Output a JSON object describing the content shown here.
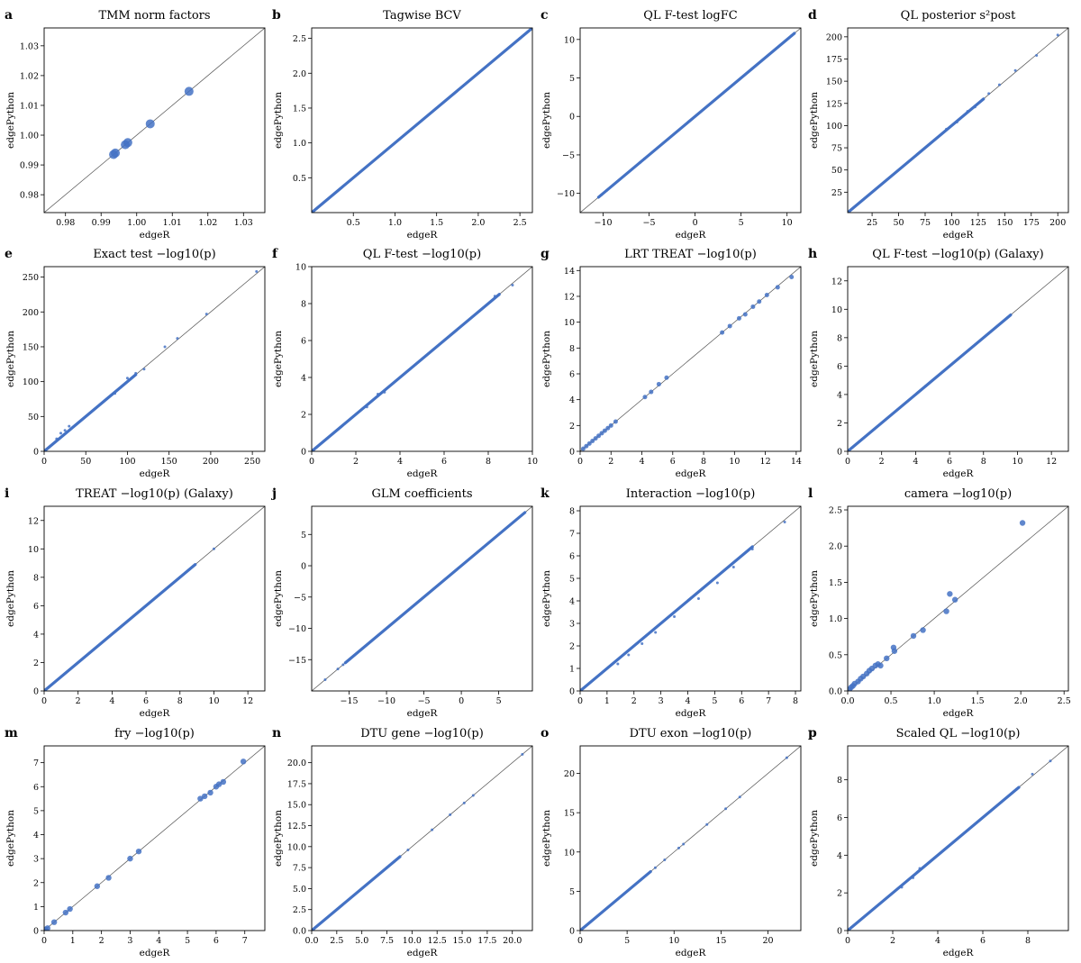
{
  "figure": {
    "x_axis_label": "edgeR",
    "y_axis_label": "edgePython",
    "point_color": "#4472c4",
    "diagonal_color": "#555555"
  },
  "chart_data": [
    {
      "type": "scatter",
      "panel": "a",
      "title": "TMM norm factors",
      "xlim": [
        0.974,
        1.036
      ],
      "ylim": [
        0.974,
        1.036
      ],
      "xticks": [
        "0.98",
        "0.99",
        "1.00",
        "1.01",
        "1.02",
        "1.03"
      ],
      "xtick_values": [
        0.98,
        0.99,
        1.0,
        1.01,
        1.02,
        1.03
      ],
      "yticks": [
        "0.98",
        "0.99",
        "1.00",
        "1.01",
        "1.02",
        "1.03"
      ],
      "ytick_values": [
        0.98,
        0.99,
        1.0,
        1.01,
        1.02,
        1.03
      ],
      "x": [
        0.9935,
        0.994,
        0.9968,
        0.9975,
        1.0038,
        1.0147
      ],
      "y": [
        0.9935,
        0.994,
        0.9968,
        0.9975,
        1.0038,
        1.0147
      ],
      "point_size": 5
    },
    {
      "type": "scatter",
      "panel": "b",
      "title": "Tagwise BCV",
      "xlim": [
        0.0,
        2.65
      ],
      "ylim": [
        0.0,
        2.65
      ],
      "xticks": [
        "0.5",
        "1.0",
        "1.5",
        "2.0",
        "2.5"
      ],
      "xtick_values": [
        0.5,
        1.0,
        1.5,
        2.0,
        2.5
      ],
      "yticks": [
        "0.5",
        "1.0",
        "1.5",
        "2.0",
        "2.5"
      ],
      "ytick_values": [
        0.5,
        1.0,
        1.5,
        2.0,
        2.5
      ],
      "x": [
        0.0,
        2.5
      ],
      "y": [
        0.0,
        2.5
      ],
      "line": true,
      "point_size": 1.5
    },
    {
      "type": "scatter",
      "panel": "c",
      "title": "QL F-test logFC",
      "xlim": [
        -12.5,
        11.5
      ],
      "ylim": [
        -12.5,
        11.5
      ],
      "xticks": [
        "−10",
        "−5",
        "0",
        "5",
        "10"
      ],
      "xtick_values": [
        -10,
        -5,
        0,
        5,
        10
      ],
      "yticks": [
        "−10",
        "−5",
        "0",
        "5",
        "10"
      ],
      "ytick_values": [
        -10,
        -5,
        0,
        5,
        10
      ],
      "x": [
        -10.2,
        -9.6,
        -6.0,
        -5.5,
        5.8,
        6.2,
        10.5
      ],
      "y": [
        -10.2,
        -9.6,
        -6.0,
        -5.5,
        5.8,
        6.2,
        10.5
      ],
      "line": true,
      "linerange": [
        -10.5,
        10.8
      ],
      "point_size": 1.5
    },
    {
      "type": "scatter",
      "panel": "d",
      "title": "QL posterior s²post",
      "xlim": [
        2,
        210
      ],
      "ylim": [
        2,
        210
      ],
      "xticks": [
        "25",
        "50",
        "75",
        "100",
        "125",
        "150",
        "175",
        "200"
      ],
      "xtick_values": [
        25,
        50,
        75,
        100,
        125,
        150,
        175,
        200
      ],
      "yticks": [
        "25",
        "50",
        "75",
        "100",
        "125",
        "150",
        "175",
        "200"
      ],
      "ytick_values": [
        25,
        50,
        75,
        100,
        125,
        150,
        175,
        200
      ],
      "x": [
        95,
        105,
        115,
        122,
        135,
        145,
        160,
        180,
        200
      ],
      "y": [
        96,
        104,
        116,
        121,
        136,
        146,
        162,
        179,
        202
      ],
      "line": true,
      "linerange": [
        2,
        130
      ],
      "point_size": 1.5
    },
    {
      "type": "scatter",
      "panel": "e",
      "title": "Exact test −log10(p)",
      "xlim": [
        0,
        265
      ],
      "ylim": [
        0,
        265
      ],
      "xticks": [
        "0",
        "50",
        "100",
        "150",
        "200",
        "250"
      ],
      "xtick_values": [
        0,
        50,
        100,
        150,
        200,
        250
      ],
      "yticks": [
        "0",
        "50",
        "100",
        "150",
        "200",
        "250"
      ],
      "ytick_values": [
        0,
        50,
        100,
        150,
        200,
        250
      ],
      "x": [
        15,
        20,
        25,
        30,
        85,
        100,
        110,
        120,
        145,
        160,
        195,
        255
      ],
      "y": [
        18,
        26,
        30,
        36,
        83,
        105,
        112,
        118,
        150,
        162,
        197,
        258
      ],
      "line": true,
      "linerange": [
        0,
        110
      ],
      "point_size": 1.5
    },
    {
      "type": "scatter",
      "panel": "f",
      "title": "QL F-test −log10(p)",
      "xlim": [
        0,
        10
      ],
      "ylim": [
        0,
        10
      ],
      "xticks": [
        "0",
        "2",
        "4",
        "6",
        "8",
        "10"
      ],
      "xtick_values": [
        0,
        2,
        4,
        6,
        8,
        10
      ],
      "yticks": [
        "0",
        "2",
        "4",
        "6",
        "8",
        "10"
      ],
      "ytick_values": [
        0,
        2,
        4,
        6,
        8,
        10
      ],
      "x": [
        2.5,
        3.0,
        3.3,
        7.6,
        8.3,
        9.1
      ],
      "y": [
        2.4,
        3.1,
        3.2,
        7.6,
        8.4,
        9.0
      ],
      "line": true,
      "linerange": [
        0,
        8.5
      ],
      "point_size": 1.5
    },
    {
      "type": "scatter",
      "panel": "g",
      "title": "LRT TREAT −log10(p)",
      "xlim": [
        0,
        14.3
      ],
      "ylim": [
        0,
        14.3
      ],
      "xticks": [
        "0",
        "2",
        "4",
        "6",
        "8",
        "10",
        "12",
        "14"
      ],
      "xtick_values": [
        0,
        2,
        4,
        6,
        8,
        10,
        12,
        14
      ],
      "yticks": [
        "0",
        "2",
        "4",
        "6",
        "8",
        "10",
        "12",
        "14"
      ],
      "ytick_values": [
        0,
        2,
        4,
        6,
        8,
        10,
        12,
        14
      ],
      "x": [
        0.2,
        0.4,
        0.6,
        0.8,
        1.0,
        1.2,
        1.4,
        1.6,
        1.8,
        2.0,
        2.3,
        4.2,
        4.6,
        5.1,
        5.6,
        9.2,
        9.7,
        10.3,
        10.7,
        11.2,
        11.6,
        12.1,
        12.8,
        13.7
      ],
      "y": [
        0.2,
        0.4,
        0.6,
        0.8,
        1.0,
        1.2,
        1.4,
        1.6,
        1.8,
        2.0,
        2.3,
        4.2,
        4.6,
        5.2,
        5.7,
        9.2,
        9.7,
        10.3,
        10.6,
        11.2,
        11.6,
        12.1,
        12.7,
        13.5
      ],
      "point_size": 2.5
    },
    {
      "type": "scatter",
      "panel": "h",
      "title": "QL F-test −log10(p) (Galaxy)",
      "xlim": [
        0,
        13
      ],
      "ylim": [
        0,
        13
      ],
      "xticks": [
        "0",
        "2",
        "4",
        "6",
        "8",
        "10",
        "12"
      ],
      "xtick_values": [
        0,
        2,
        4,
        6,
        8,
        10,
        12
      ],
      "yticks": [
        "0",
        "2",
        "4",
        "6",
        "8",
        "10",
        "12"
      ],
      "ytick_values": [
        0,
        2,
        4,
        6,
        8,
        10,
        12
      ],
      "x": [
        4.6,
        8.3,
        9.4
      ],
      "y": [
        4.6,
        8.3,
        9.4
      ],
      "line": true,
      "linerange": [
        0,
        9.6
      ],
      "point_size": 1.5
    },
    {
      "type": "scatter",
      "panel": "i",
      "title": "TREAT −log10(p) (Galaxy)",
      "xlim": [
        0,
        13
      ],
      "ylim": [
        0,
        13
      ],
      "xticks": [
        "0",
        "2",
        "4",
        "6",
        "8",
        "10",
        "12"
      ],
      "xtick_values": [
        0,
        2,
        4,
        6,
        8,
        10,
        12
      ],
      "yticks": [
        "0",
        "2",
        "4",
        "6",
        "8",
        "10",
        "12"
      ],
      "ytick_values": [
        0,
        2,
        4,
        6,
        8,
        10,
        12
      ],
      "x": [
        6.6,
        8.0,
        8.8,
        10.0
      ],
      "y": [
        6.6,
        8.0,
        8.8,
        10.0
      ],
      "line": true,
      "linerange": [
        0,
        8.9
      ],
      "point_size": 1.5
    },
    {
      "type": "scatter",
      "panel": "j",
      "title": "GLM coefficients",
      "xlim": [
        -20,
        9.5
      ],
      "ylim": [
        -20,
        9.5
      ],
      "xticks": [
        "−15",
        "−10",
        "−5",
        "0",
        "5"
      ],
      "xtick_values": [
        -15,
        -10,
        -5,
        0,
        5
      ],
      "yticks": [
        "−15",
        "−10",
        "−5",
        "0",
        "5"
      ],
      "ytick_values": [
        -15,
        -10,
        -5,
        0,
        5
      ],
      "x": [
        -18.2,
        -16.5,
        -15.8
      ],
      "y": [
        -18.2,
        -16.5,
        -15.8
      ],
      "line": true,
      "linerange": [
        -15.5,
        8.5
      ],
      "point_size": 1.5
    },
    {
      "type": "scatter",
      "panel": "k",
      "title": "Interaction −log10(p)",
      "xlim": [
        0,
        8.2
      ],
      "ylim": [
        0,
        8.2
      ],
      "xticks": [
        "0",
        "1",
        "2",
        "3",
        "4",
        "5",
        "6",
        "7",
        "8"
      ],
      "xtick_values": [
        0,
        1,
        2,
        3,
        4,
        5,
        6,
        7,
        8
      ],
      "yticks": [
        "0",
        "1",
        "2",
        "3",
        "4",
        "5",
        "6",
        "7",
        "8"
      ],
      "ytick_values": [
        0,
        1,
        2,
        3,
        4,
        5,
        6,
        7,
        8
      ],
      "x": [
        1.4,
        1.8,
        2.3,
        2.8,
        3.5,
        4.4,
        5.1,
        5.7,
        6.4,
        7.6
      ],
      "y": [
        1.2,
        1.6,
        2.1,
        2.6,
        3.3,
        4.1,
        4.8,
        5.5,
        6.3,
        7.5
      ],
      "line": true,
      "linerange": [
        0,
        6.4
      ],
      "point_size": 1.5
    },
    {
      "type": "scatter",
      "panel": "l",
      "title": "camera −log10(p)",
      "xlim": [
        0,
        2.55
      ],
      "ylim": [
        0,
        2.55
      ],
      "xticks": [
        "0.0",
        "0.5",
        "1.0",
        "1.5",
        "2.0",
        "2.5"
      ],
      "xtick_values": [
        0.0,
        0.5,
        1.0,
        1.5,
        2.0,
        2.5
      ],
      "yticks": [
        "0.0",
        "0.5",
        "1.0",
        "1.5",
        "2.0",
        "2.5"
      ],
      "ytick_values": [
        0.0,
        0.5,
        1.0,
        1.5,
        2.0,
        2.5
      ],
      "x": [
        0.02,
        0.04,
        0.06,
        0.08,
        0.12,
        0.15,
        0.18,
        0.22,
        0.25,
        0.28,
        0.32,
        0.35,
        0.38,
        0.45,
        0.53,
        0.54,
        0.76,
        0.87,
        1.14,
        1.18,
        1.24,
        2.02
      ],
      "y": [
        0.02,
        0.05,
        0.07,
        0.1,
        0.13,
        0.17,
        0.2,
        0.24,
        0.28,
        0.31,
        0.35,
        0.37,
        0.35,
        0.45,
        0.6,
        0.55,
        0.76,
        0.84,
        1.1,
        1.34,
        1.26,
        2.32
      ],
      "point_size": 3.2
    },
    {
      "type": "scatter",
      "panel": "m",
      "title": "fry −log10(p)",
      "xlim": [
        0,
        7.7
      ],
      "ylim": [
        0,
        7.7
      ],
      "xticks": [
        "0",
        "1",
        "2",
        "3",
        "4",
        "5",
        "6",
        "7"
      ],
      "xtick_values": [
        0,
        1,
        2,
        3,
        4,
        5,
        6,
        7
      ],
      "yticks": [
        "0",
        "1",
        "2",
        "3",
        "4",
        "5",
        "6",
        "7"
      ],
      "ytick_values": [
        0,
        1,
        2,
        3,
        4,
        5,
        6,
        7
      ],
      "x": [
        0.05,
        0.12,
        0.35,
        0.75,
        0.9,
        1.85,
        2.25,
        3.0,
        3.3,
        5.45,
        5.6,
        5.8,
        6.0,
        6.1,
        6.25,
        6.95
      ],
      "y": [
        0.05,
        0.1,
        0.35,
        0.75,
        0.9,
        1.85,
        2.2,
        3.0,
        3.3,
        5.5,
        5.6,
        5.75,
        6.0,
        6.1,
        6.2,
        7.05
      ],
      "point_size": 3.2
    },
    {
      "type": "scatter",
      "panel": "n",
      "title": "DTU gene −log10(p)",
      "xlim": [
        0,
        22
      ],
      "ylim": [
        0,
        22
      ],
      "xticks": [
        "0.0",
        "2.5",
        "5.0",
        "7.5",
        "10.0",
        "12.5",
        "15.0",
        "17.5",
        "20.0"
      ],
      "xtick_values": [
        0.0,
        2.5,
        5.0,
        7.5,
        10.0,
        12.5,
        15.0,
        17.5,
        20.0
      ],
      "yticks": [
        "0.0",
        "2.5",
        "5.0",
        "7.5",
        "10.0",
        "12.5",
        "15.0",
        "17.5",
        "20.0"
      ],
      "ytick_values": [
        0.0,
        2.5,
        5.0,
        7.5,
        10.0,
        12.5,
        15.0,
        17.5,
        20.0
      ],
      "x": [
        7.5,
        8.2,
        9.6,
        12.0,
        13.8,
        15.2,
        16.1,
        21.0
      ],
      "y": [
        7.5,
        8.2,
        9.6,
        12.0,
        13.8,
        15.2,
        16.1,
        21.0
      ],
      "line": true,
      "linerange": [
        0,
        8.8
      ],
      "point_size": 1.5
    },
    {
      "type": "scatter",
      "panel": "o",
      "title": "DTU exon −log10(p)",
      "xlim": [
        0,
        23.5
      ],
      "ylim": [
        0,
        23.5
      ],
      "xticks": [
        "0",
        "5",
        "10",
        "15",
        "20"
      ],
      "xtick_values": [
        0,
        5,
        10,
        15,
        20
      ],
      "yticks": [
        "0",
        "5",
        "10",
        "15",
        "20"
      ],
      "ytick_values": [
        0,
        5,
        10,
        15,
        20
      ],
      "x": [
        8.0,
        9.0,
        10.5,
        11.0,
        13.5,
        15.5,
        17.0,
        22.0
      ],
      "y": [
        8.0,
        9.0,
        10.5,
        11.0,
        13.5,
        15.5,
        17.0,
        22.0
      ],
      "line": true,
      "linerange": [
        0,
        7.5
      ],
      "point_size": 1.5
    },
    {
      "type": "scatter",
      "panel": "p",
      "title": "Scaled QL −log10(p)",
      "xlim": [
        0,
        9.8
      ],
      "ylim": [
        0,
        9.8
      ],
      "xticks": [
        "0",
        "2",
        "4",
        "6",
        "8"
      ],
      "xtick_values": [
        0,
        2,
        4,
        6,
        8
      ],
      "yticks": [
        "0",
        "2",
        "4",
        "6",
        "8"
      ],
      "ytick_values": [
        0,
        2,
        4,
        6,
        8
      ],
      "x": [
        2.4,
        2.9,
        3.2,
        7.5,
        8.2,
        9.0
      ],
      "y": [
        2.3,
        2.8,
        3.3,
        7.5,
        8.3,
        9.0
      ],
      "line": true,
      "linerange": [
        0,
        7.6
      ],
      "point_size": 1.5
    }
  ]
}
